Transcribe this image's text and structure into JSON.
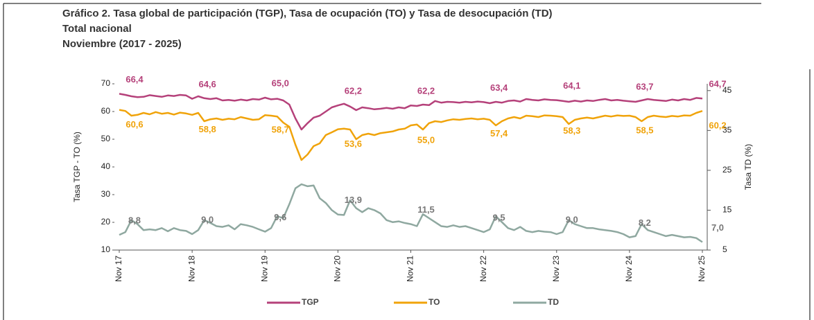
{
  "chart_data": {
    "type": "line",
    "title": "Gráfico 2. Tasa global de participación (TGP), Tasa de ocupación (TO) y Tasa de desocupación (TD)",
    "subtitle": [
      "Total nacional",
      "Noviembre (2017 - 2025)"
    ],
    "ylabel": "Tasa TGP - TO (%)",
    "y2label": "Tasa TD (%)",
    "categories": [
      "Nov 17",
      null,
      null,
      null,
      null,
      null,
      null,
      null,
      null,
      null,
      null,
      null,
      "Nov 18",
      null,
      null,
      null,
      null,
      null,
      null,
      null,
      null,
      null,
      null,
      null,
      "Nov 19",
      null,
      null,
      null,
      null,
      null,
      null,
      null,
      null,
      null,
      null,
      null,
      "Nov 20",
      null,
      null,
      null,
      null,
      null,
      null,
      null,
      null,
      null,
      null,
      null,
      "Nov 21",
      null,
      null,
      null,
      null,
      null,
      null,
      null,
      null,
      null,
      null,
      null,
      "Nov 22",
      null,
      null,
      null,
      null,
      null,
      null,
      null,
      null,
      null,
      null,
      null,
      "Nov 23",
      null,
      null,
      null,
      null,
      null,
      null,
      null,
      null,
      null,
      null,
      null,
      "Nov 24",
      null,
      null,
      null,
      null,
      null,
      null,
      null,
      null,
      null,
      null,
      null,
      "Nov 25"
    ],
    "ylim": [
      10,
      70
    ],
    "yticks": [
      10,
      20,
      30,
      40,
      50,
      60,
      70
    ],
    "y2lim": [
      5,
      46.7
    ],
    "y2ticks": [
      5,
      15,
      25,
      35,
      45
    ],
    "legend": "bottom",
    "series": [
      {
        "name": "TGP",
        "color": "#b5417a",
        "values": [
          66.4,
          66.0,
          65.5,
          65.2,
          65.3,
          65.9,
          65.6,
          65.3,
          65.8,
          65.6,
          66.0,
          65.8,
          64.6,
          65.5,
          64.8,
          64.5,
          64.8,
          64.0,
          64.2,
          63.9,
          64.3,
          64.0,
          64.5,
          64.3,
          65.0,
          64.4,
          64.6,
          64.0,
          62.5,
          57.5,
          53.5,
          55.8,
          57.8,
          58.5,
          60.0,
          61.5,
          62.2,
          62.8,
          61.8,
          60.5,
          61.5,
          61.2,
          60.8,
          61.0,
          61.3,
          61.0,
          61.5,
          61.2,
          62.2,
          62.0,
          62.5,
          62.3,
          63.8,
          63.2,
          63.5,
          63.4,
          63.2,
          63.5,
          63.3,
          63.6,
          63.4,
          63.0,
          63.5,
          63.2,
          63.8,
          64.0,
          63.6,
          64.5,
          64.2,
          64.0,
          64.4,
          64.2,
          64.1,
          63.8,
          63.5,
          63.9,
          63.6,
          64.0,
          63.8,
          64.2,
          64.5,
          64.0,
          64.2,
          63.9,
          63.7,
          63.5,
          64.0,
          64.5,
          64.2,
          64.0,
          63.8,
          64.3,
          64.0,
          64.5,
          64.2,
          64.9,
          64.7
        ],
        "value_labels": [
          "66,4",
          null,
          null,
          null,
          null,
          null,
          null,
          null,
          null,
          null,
          null,
          null,
          "64,6",
          null,
          null,
          null,
          null,
          null,
          null,
          null,
          null,
          null,
          null,
          null,
          "65,0",
          null,
          null,
          null,
          null,
          null,
          null,
          null,
          null,
          null,
          null,
          null,
          "62,2",
          null,
          null,
          null,
          null,
          null,
          null,
          null,
          null,
          null,
          null,
          null,
          "62,2",
          null,
          null,
          null,
          null,
          null,
          null,
          null,
          null,
          null,
          null,
          null,
          "63,4",
          null,
          null,
          null,
          null,
          null,
          null,
          null,
          null,
          null,
          null,
          null,
          "64,1",
          null,
          null,
          null,
          null,
          null,
          null,
          null,
          null,
          null,
          null,
          null,
          "63,7",
          null,
          null,
          null,
          null,
          null,
          null,
          null,
          null,
          null,
          null,
          null,
          "64,7"
        ]
      },
      {
        "name": "TO",
        "color": "#f0a30a",
        "values": [
          60.6,
          60.2,
          58.5,
          58.8,
          59.5,
          59.0,
          59.8,
          59.2,
          59.5,
          58.9,
          59.6,
          59.3,
          58.8,
          59.5,
          56.5,
          57.2,
          57.5,
          57.0,
          57.4,
          57.2,
          58.0,
          57.5,
          57.0,
          57.2,
          58.7,
          58.5,
          58.2,
          56.0,
          54.5,
          48.0,
          42.5,
          44.5,
          47.5,
          48.5,
          51.5,
          52.5,
          53.6,
          53.8,
          53.5,
          50.0,
          51.5,
          52.0,
          51.5,
          52.2,
          52.5,
          52.8,
          53.5,
          53.8,
          55.0,
          55.3,
          53.5,
          55.8,
          56.5,
          56.2,
          56.8,
          57.2,
          57.0,
          57.3,
          57.5,
          57.2,
          57.4,
          57.0,
          55.0,
          56.5,
          57.5,
          58.0,
          57.5,
          58.5,
          58.3,
          58.0,
          58.6,
          58.5,
          58.3,
          58.0,
          55.5,
          57.0,
          57.5,
          57.8,
          57.5,
          58.0,
          58.5,
          58.2,
          58.6,
          58.4,
          58.5,
          58.0,
          56.5,
          58.0,
          58.5,
          58.2,
          58.0,
          58.4,
          58.2,
          58.6,
          58.5,
          59.5,
          60.2
        ],
        "value_labels": [
          "60,6",
          null,
          null,
          null,
          null,
          null,
          null,
          null,
          null,
          null,
          null,
          null,
          "58,8",
          null,
          null,
          null,
          null,
          null,
          null,
          null,
          null,
          null,
          null,
          null,
          "58,7",
          null,
          null,
          null,
          null,
          null,
          null,
          null,
          null,
          null,
          null,
          null,
          "53,6",
          null,
          null,
          null,
          null,
          null,
          null,
          null,
          null,
          null,
          null,
          null,
          "55,0",
          null,
          null,
          null,
          null,
          null,
          null,
          null,
          null,
          null,
          null,
          null,
          "57,4",
          null,
          null,
          null,
          null,
          null,
          null,
          null,
          null,
          null,
          null,
          null,
          "58,3",
          null,
          null,
          null,
          null,
          null,
          null,
          null,
          null,
          null,
          null,
          null,
          "58,5",
          null,
          null,
          null,
          null,
          null,
          null,
          null,
          null,
          null,
          null,
          null,
          "60,2"
        ]
      },
      {
        "name": "TD",
        "color": "#8fa8a0",
        "axis": "y2",
        "values": [
          8.8,
          9.5,
          12.5,
          11.5,
          10.0,
          10.2,
          10.0,
          10.5,
          9.7,
          10.5,
          10.0,
          9.8,
          9.0,
          10.0,
          12.5,
          11.8,
          11.0,
          10.8,
          11.2,
          10.2,
          11.5,
          11.2,
          10.8,
          10.2,
          9.6,
          10.5,
          13.5,
          13.0,
          16.5,
          20.5,
          21.5,
          21.0,
          21.2,
          18.0,
          16.8,
          15.0,
          13.9,
          13.8,
          17.5,
          15.5,
          14.5,
          15.5,
          15.0,
          14.2,
          12.5,
          12.0,
          12.2,
          11.8,
          11.5,
          11.0,
          14.0,
          13.0,
          12.0,
          11.0,
          10.8,
          11.2,
          10.8,
          11.0,
          10.5,
          10.0,
          9.5,
          10.2,
          13.5,
          12.0,
          10.5,
          10.0,
          10.8,
          9.8,
          9.5,
          9.8,
          9.6,
          9.5,
          9.0,
          9.5,
          12.5,
          11.5,
          11.0,
          10.5,
          10.5,
          10.2,
          10.0,
          9.8,
          9.5,
          9.0,
          8.2,
          8.5,
          11.5,
          10.0,
          9.5,
          9.0,
          8.5,
          8.8,
          8.5,
          8.2,
          8.3,
          8.0,
          7.0
        ],
        "value_labels": [
          "8,8",
          null,
          null,
          null,
          null,
          null,
          null,
          null,
          null,
          null,
          null,
          null,
          "9,0",
          null,
          null,
          null,
          null,
          null,
          null,
          null,
          null,
          null,
          null,
          null,
          "9,6",
          null,
          null,
          null,
          null,
          null,
          null,
          null,
          null,
          null,
          null,
          null,
          "13,9",
          null,
          null,
          null,
          null,
          null,
          null,
          null,
          null,
          null,
          null,
          null,
          "11,5",
          null,
          null,
          null,
          null,
          null,
          null,
          null,
          null,
          null,
          null,
          null,
          "9,5",
          null,
          null,
          null,
          null,
          null,
          null,
          null,
          null,
          null,
          null,
          null,
          "9,0",
          null,
          null,
          null,
          null,
          null,
          null,
          null,
          null,
          null,
          null,
          null,
          "8,2",
          null,
          null,
          null,
          null,
          null,
          null,
          null,
          null,
          null,
          null,
          null,
          "7,0"
        ]
      }
    ]
  }
}
